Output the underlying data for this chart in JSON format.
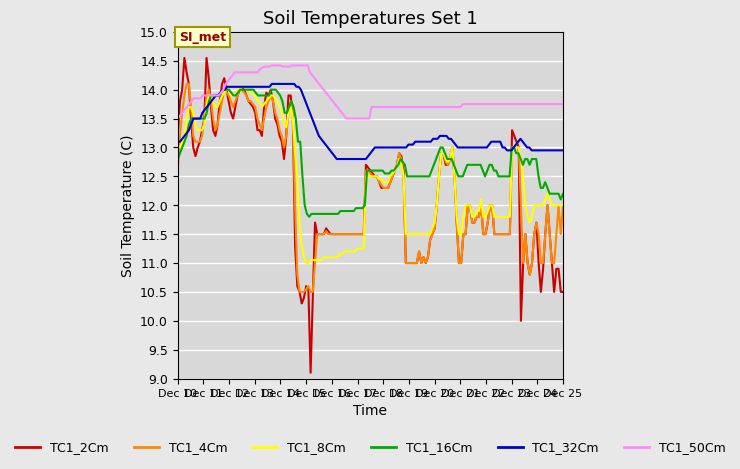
{
  "title": "Soil Temperatures Set 1",
  "xlabel": "Time",
  "ylabel": "Soil Temperature (C)",
  "ylim": [
    9.0,
    15.0
  ],
  "yticks": [
    9.0,
    9.5,
    10.0,
    10.5,
    11.0,
    11.5,
    12.0,
    12.5,
    13.0,
    13.5,
    14.0,
    14.5,
    15.0
  ],
  "xtick_labels": [
    "Dec 10",
    "Dec 11",
    "Dec 12",
    "Dec 13",
    "Dec 14",
    "Dec 15",
    "Dec 16",
    "Dec 17",
    "Dec 18",
    "Dec 19",
    "Dec 20",
    "Dec 21",
    "Dec 22",
    "Dec 23",
    "Dec 24",
    "Dec 25"
  ],
  "bg_color": "#e8e8e8",
  "plot_bg_color": "#d8d8d8",
  "grid_color": "#ffffff",
  "annotation_text": "SI_met",
  "annotation_bg": "#ffffcc",
  "annotation_border": "#999900",
  "legend_entries": [
    "TC1_2Cm",
    "TC1_4Cm",
    "TC1_8Cm",
    "TC1_16Cm",
    "TC1_32Cm",
    "TC1_50Cm"
  ],
  "line_colors": [
    "#cc0000",
    "#ff8800",
    "#ffff00",
    "#00aa00",
    "#0000cc",
    "#ff88ff"
  ],
  "series": {
    "TC1_2Cm": [
      13.2,
      13.8,
      14.0,
      14.55,
      14.3,
      14.1,
      13.5,
      13.0,
      12.85,
      13.0,
      13.1,
      13.3,
      13.5,
      14.55,
      14.2,
      13.7,
      13.3,
      13.2,
      13.4,
      13.8,
      14.1,
      14.2,
      14.0,
      13.8,
      13.6,
      13.5,
      13.7,
      13.9,
      14.0,
      14.05,
      14.0,
      13.9,
      13.8,
      13.75,
      13.7,
      13.6,
      13.3,
      13.3,
      13.2,
      13.7,
      13.95,
      13.9,
      14.0,
      13.8,
      13.5,
      13.4,
      13.2,
      13.1,
      12.8,
      13.2,
      13.9,
      13.9,
      13.5,
      11.3,
      10.6,
      10.5,
      10.3,
      10.4,
      10.6,
      10.55,
      9.1,
      10.4,
      11.7,
      11.5,
      11.5,
      11.5,
      11.5,
      11.6,
      11.55,
      11.5,
      11.5,
      11.5,
      11.5,
      11.5,
      11.5,
      11.5,
      11.5,
      11.5,
      11.5,
      11.5,
      11.5,
      11.5,
      11.5,
      11.5,
      11.5,
      12.7,
      12.65,
      12.6,
      12.55,
      12.5,
      12.5,
      12.4,
      12.3,
      12.3,
      12.3,
      12.3,
      12.4,
      12.5,
      12.6,
      12.7,
      12.9,
      12.85,
      12.6,
      11.0,
      11.0,
      11.0,
      11.0,
      11.0,
      11.0,
      11.2,
      11.0,
      11.1,
      11.0,
      11.1,
      11.4,
      11.5,
      11.6,
      12.0,
      12.5,
      12.9,
      12.9,
      12.7,
      12.7,
      12.8,
      13.0,
      12.5,
      11.7,
      11.0,
      11.0,
      11.5,
      11.5,
      12.0,
      12.0,
      11.7,
      11.7,
      11.8,
      11.8,
      12.0,
      11.5,
      11.5,
      11.7,
      12.0,
      12.0,
      11.5,
      11.5,
      11.5,
      11.5,
      11.5,
      11.5,
      11.5,
      11.5,
      13.3,
      13.2,
      13.1,
      13.0,
      10.0,
      11.0,
      11.5,
      11.0,
      10.8,
      11.0,
      11.5,
      11.7,
      11.0,
      10.5,
      10.9,
      11.5,
      12.0,
      11.5,
      11.0,
      10.5,
      10.9,
      10.9,
      10.5,
      10.5
    ],
    "TC1_4Cm": [
      12.6,
      13.2,
      13.6,
      13.9,
      14.1,
      14.1,
      13.7,
      13.2,
      13.1,
      13.1,
      13.1,
      13.2,
      13.5,
      13.9,
      14.0,
      13.8,
      13.5,
      13.3,
      13.4,
      13.6,
      13.8,
      14.0,
      13.95,
      13.9,
      13.8,
      13.7,
      13.8,
      13.9,
      14.0,
      14.0,
      13.95,
      13.9,
      13.8,
      13.8,
      13.75,
      13.7,
      13.5,
      13.4,
      13.3,
      13.5,
      13.7,
      13.8,
      13.9,
      13.8,
      13.6,
      13.5,
      13.3,
      13.2,
      13.0,
      13.2,
      13.6,
      13.8,
      13.5,
      12.0,
      10.8,
      10.5,
      10.5,
      10.5,
      10.55,
      10.6,
      10.5,
      10.5,
      11.0,
      11.5,
      11.5,
      11.5,
      11.5,
      11.55,
      11.5,
      11.5,
      11.5,
      11.5,
      11.5,
      11.5,
      11.5,
      11.5,
      11.5,
      11.5,
      11.5,
      11.5,
      11.5,
      11.5,
      11.5,
      11.5,
      11.5,
      12.6,
      12.6,
      12.55,
      12.5,
      12.5,
      12.5,
      12.4,
      12.35,
      12.3,
      12.3,
      12.3,
      12.4,
      12.5,
      12.6,
      12.7,
      12.9,
      12.8,
      12.5,
      11.0,
      11.0,
      11.0,
      11.0,
      11.0,
      11.0,
      11.2,
      11.0,
      11.1,
      11.0,
      11.1,
      11.4,
      11.5,
      11.6,
      12.0,
      12.5,
      12.9,
      12.9,
      12.75,
      12.7,
      12.8,
      13.0,
      12.5,
      11.7,
      11.0,
      11.0,
      11.5,
      11.5,
      12.0,
      12.0,
      11.7,
      11.7,
      11.8,
      11.8,
      12.0,
      11.5,
      11.5,
      11.7,
      12.0,
      12.0,
      11.5,
      11.5,
      11.5,
      11.5,
      11.5,
      11.5,
      11.5,
      11.5,
      13.0,
      13.0,
      13.0,
      13.0,
      12.0,
      11.0,
      11.5,
      11.0,
      10.8,
      11.0,
      11.5,
      11.7,
      11.5,
      11.0,
      11.0,
      11.5,
      12.0,
      11.5,
      11.0,
      11.0,
      11.5,
      12.0,
      11.5,
      12.0
    ],
    "TC1_8Cm": [
      13.0,
      13.0,
      13.1,
      13.2,
      13.5,
      13.7,
      13.7,
      13.6,
      13.4,
      13.3,
      13.3,
      13.3,
      13.4,
      13.7,
      13.9,
      13.9,
      13.8,
      13.7,
      13.7,
      13.8,
      13.9,
      13.95,
      14.0,
      14.0,
      13.9,
      13.9,
      13.9,
      14.0,
      14.0,
      14.05,
      14.05,
      14.0,
      14.0,
      13.95,
      13.9,
      13.9,
      13.8,
      13.8,
      13.7,
      13.75,
      13.8,
      13.85,
      13.9,
      13.9,
      13.85,
      13.8,
      13.7,
      13.6,
      13.4,
      13.35,
      13.6,
      13.7,
      13.5,
      12.9,
      12.5,
      11.7,
      11.3,
      11.1,
      11.0,
      11.0,
      11.05,
      11.05,
      11.05,
      11.05,
      11.05,
      11.05,
      11.1,
      11.1,
      11.1,
      11.1,
      11.1,
      11.1,
      11.1,
      11.15,
      11.15,
      11.2,
      11.2,
      11.2,
      11.2,
      11.2,
      11.2,
      11.25,
      11.25,
      11.25,
      11.25,
      12.5,
      12.5,
      12.5,
      12.5,
      12.5,
      12.5,
      12.45,
      12.45,
      12.4,
      12.4,
      12.4,
      12.5,
      12.55,
      12.6,
      12.65,
      12.8,
      12.7,
      12.5,
      11.5,
      11.5,
      11.5,
      11.5,
      11.5,
      11.5,
      11.5,
      11.5,
      11.5,
      11.5,
      11.5,
      11.5,
      11.6,
      11.7,
      12.0,
      12.5,
      12.9,
      12.9,
      12.8,
      12.75,
      12.8,
      13.0,
      12.5,
      11.8,
      11.5,
      11.5,
      11.8,
      12.0,
      12.0,
      12.0,
      11.8,
      11.8,
      11.9,
      11.9,
      12.1,
      11.8,
      11.8,
      11.9,
      12.0,
      12.0,
      11.8,
      11.8,
      11.8,
      11.8,
      11.8,
      11.8,
      11.8,
      11.8,
      13.0,
      13.0,
      13.0,
      13.0,
      12.8,
      12.5,
      12.0,
      11.8,
      11.7,
      11.8,
      12.0,
      12.0,
      12.0,
      12.0,
      12.0,
      12.1,
      12.2,
      12.1,
      12.0,
      12.0,
      12.0,
      12.0,
      12.0,
      12.0
    ],
    "TC1_16Cm": [
      12.8,
      12.9,
      13.0,
      13.1,
      13.2,
      13.4,
      13.5,
      13.5,
      13.5,
      13.5,
      13.5,
      13.5,
      13.5,
      13.6,
      13.8,
      13.9,
      13.9,
      13.9,
      13.9,
      13.9,
      14.0,
      14.0,
      14.0,
      14.0,
      13.95,
      13.9,
      13.9,
      13.95,
      14.0,
      14.0,
      14.0,
      14.0,
      14.0,
      14.0,
      14.0,
      13.95,
      13.9,
      13.9,
      13.9,
      13.9,
      13.9,
      13.9,
      14.0,
      14.0,
      14.0,
      13.95,
      13.9,
      13.8,
      13.6,
      13.6,
      13.7,
      13.8,
      13.7,
      13.5,
      13.1,
      13.1,
      12.5,
      12.0,
      11.85,
      11.8,
      11.85,
      11.85,
      11.85,
      11.85,
      11.85,
      11.85,
      11.85,
      11.85,
      11.85,
      11.85,
      11.85,
      11.85,
      11.85,
      11.9,
      11.9,
      11.9,
      11.9,
      11.9,
      11.9,
      11.9,
      11.95,
      11.95,
      11.95,
      11.95,
      12.0,
      12.6,
      12.6,
      12.6,
      12.6,
      12.6,
      12.6,
      12.6,
      12.6,
      12.55,
      12.55,
      12.55,
      12.6,
      12.6,
      12.65,
      12.7,
      12.8,
      12.75,
      12.7,
      12.5,
      12.5,
      12.5,
      12.5,
      12.5,
      12.5,
      12.5,
      12.5,
      12.5,
      12.5,
      12.5,
      12.6,
      12.7,
      12.8,
      12.9,
      13.0,
      13.0,
      12.9,
      12.8,
      12.8,
      12.8,
      12.7,
      12.6,
      12.5,
      12.5,
      12.5,
      12.6,
      12.7,
      12.7,
      12.7,
      12.7,
      12.7,
      12.7,
      12.7,
      12.6,
      12.5,
      12.6,
      12.7,
      12.7,
      12.6,
      12.6,
      12.5,
      12.5,
      12.5,
      12.5,
      12.5,
      12.5,
      13.0,
      13.0,
      12.9,
      12.9,
      12.8,
      12.7,
      12.8,
      12.8,
      12.7,
      12.8,
      12.8,
      12.8,
      12.5,
      12.3,
      12.3,
      12.4,
      12.3,
      12.2,
      12.2,
      12.2,
      12.2,
      12.2,
      12.1,
      12.2
    ],
    "TC1_32Cm": [
      13.1,
      13.1,
      13.15,
      13.2,
      13.25,
      13.3,
      13.4,
      13.5,
      13.5,
      13.5,
      13.5,
      13.6,
      13.65,
      13.7,
      13.75,
      13.8,
      13.85,
      13.9,
      13.9,
      13.95,
      14.0,
      14.0,
      14.05,
      14.05,
      14.05,
      14.05,
      14.05,
      14.05,
      14.05,
      14.05,
      14.05,
      14.05,
      14.05,
      14.05,
      14.05,
      14.05,
      14.05,
      14.05,
      14.05,
      14.05,
      14.05,
      14.05,
      14.1,
      14.1,
      14.1,
      14.1,
      14.1,
      14.1,
      14.1,
      14.1,
      14.1,
      14.1,
      14.1,
      14.05,
      14.05,
      14.0,
      13.9,
      13.8,
      13.7,
      13.6,
      13.5,
      13.4,
      13.3,
      13.2,
      13.15,
      13.1,
      13.05,
      13.0,
      12.95,
      12.9,
      12.85,
      12.8,
      12.8,
      12.8,
      12.8,
      12.8,
      12.8,
      12.8,
      12.8,
      12.8,
      12.8,
      12.8,
      12.8,
      12.8,
      12.8,
      12.85,
      12.9,
      12.95,
      13.0,
      13.0,
      13.0,
      13.0,
      13.0,
      13.0,
      13.0,
      13.0,
      13.0,
      13.0,
      13.0,
      13.0,
      13.0,
      13.0,
      13.0,
      13.05,
      13.05,
      13.05,
      13.1,
      13.1,
      13.1,
      13.1,
      13.1,
      13.1,
      13.1,
      13.1,
      13.15,
      13.15,
      13.15,
      13.2,
      13.2,
      13.2,
      13.2,
      13.15,
      13.15,
      13.1,
      13.05,
      13.0,
      13.0,
      13.0,
      13.0,
      13.0,
      13.0,
      13.0,
      13.0,
      13.0,
      13.0,
      13.0,
      13.0,
      13.0,
      13.0,
      13.05,
      13.1,
      13.1,
      13.1,
      13.1,
      13.1,
      13.0,
      13.0,
      12.95,
      12.95,
      12.95,
      13.0,
      13.05,
      13.1,
      13.15,
      13.1,
      13.05,
      13.0,
      13.0,
      12.95,
      12.95,
      12.95,
      12.95,
      12.95,
      12.95,
      12.95,
      12.95,
      12.95,
      12.95,
      12.95,
      12.95,
      12.95,
      12.95,
      12.95
    ],
    "TC1_50Cm": [
      13.5,
      13.55,
      13.6,
      13.65,
      13.7,
      13.75,
      13.8,
      13.85,
      13.85,
      13.85,
      13.85,
      13.9,
      13.9,
      13.9,
      13.9,
      13.9,
      13.9,
      13.9,
      13.9,
      13.95,
      14.0,
      14.1,
      14.15,
      14.2,
      14.25,
      14.3,
      14.3,
      14.3,
      14.3,
      14.3,
      14.3,
      14.3,
      14.3,
      14.3,
      14.3,
      14.3,
      14.35,
      14.38,
      14.4,
      14.4,
      14.4,
      14.42,
      14.42,
      14.42,
      14.42,
      14.42,
      14.4,
      14.4,
      14.4,
      14.4,
      14.42,
      14.42,
      14.42,
      14.42,
      14.42,
      14.42,
      14.42,
      14.42,
      14.3,
      14.25,
      14.2,
      14.15,
      14.1,
      14.05,
      14.0,
      13.95,
      13.9,
      13.85,
      13.8,
      13.75,
      13.7,
      13.65,
      13.6,
      13.55,
      13.5,
      13.5,
      13.5,
      13.5,
      13.5,
      13.5,
      13.5,
      13.5,
      13.5,
      13.5,
      13.5,
      13.7,
      13.7,
      13.7,
      13.7,
      13.7,
      13.7,
      13.7,
      13.7,
      13.7,
      13.7,
      13.7,
      13.7,
      13.7,
      13.7,
      13.7,
      13.7,
      13.7,
      13.7,
      13.7,
      13.7,
      13.7,
      13.7,
      13.7,
      13.7,
      13.7,
      13.7,
      13.7,
      13.7,
      13.7,
      13.7,
      13.7,
      13.7,
      13.7,
      13.7,
      13.7,
      13.7,
      13.7,
      13.7,
      13.7,
      13.7,
      13.75,
      13.75,
      13.75,
      13.75,
      13.75,
      13.75,
      13.75,
      13.75,
      13.75,
      13.75,
      13.75,
      13.75,
      13.75,
      13.75,
      13.75,
      13.75,
      13.75,
      13.75,
      13.75,
      13.75,
      13.75,
      13.75,
      13.75,
      13.75,
      13.75,
      13.75,
      13.75,
      13.75,
      13.75,
      13.75,
      13.75,
      13.75,
      13.75,
      13.75,
      13.75,
      13.75,
      13.75,
      13.75,
      13.75,
      13.75,
      13.75,
      13.75,
      13.75,
      13.75,
      13.75
    ]
  }
}
